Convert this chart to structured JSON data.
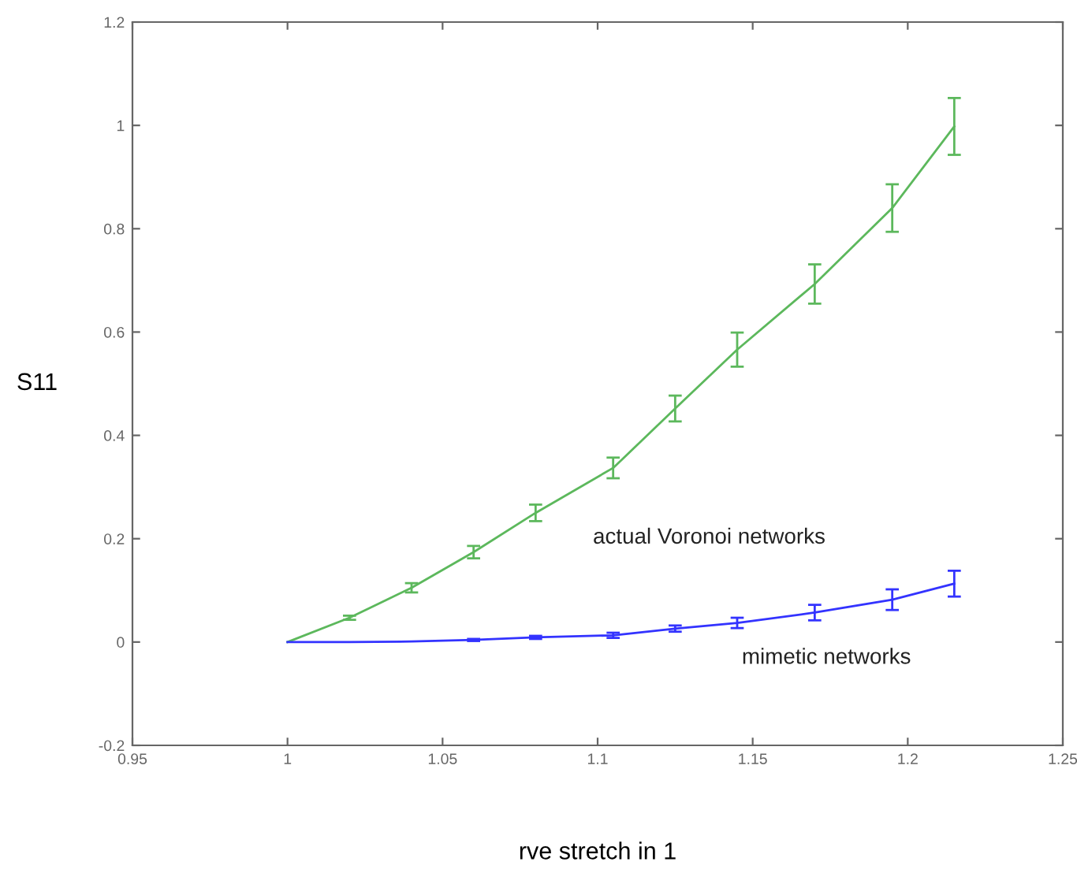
{
  "chart_data": {
    "type": "line",
    "xlabel": "rve stretch in 1",
    "ylabel": "S11",
    "x": [
      1.0,
      1.02,
      1.04,
      1.06,
      1.08,
      1.105,
      1.125,
      1.145,
      1.17,
      1.195,
      1.215
    ],
    "series": [
      {
        "name": "actual Voronoi networks",
        "color": "#5cb85c",
        "values": [
          0,
          0.047,
          0.105,
          0.174,
          0.25,
          0.337,
          0.452,
          0.566,
          0.693,
          0.84,
          0.998
        ],
        "errors": [
          null,
          0.004,
          0.009,
          0.012,
          0.016,
          0.02,
          0.025,
          0.033,
          0.038,
          0.046,
          0.055
        ]
      },
      {
        "name": "mimetic networks",
        "color": "#3333ff",
        "values": [
          0,
          0,
          0.001,
          0.004,
          0.009,
          0.013,
          0.026,
          0.037,
          0.057,
          0.082,
          0.113
        ],
        "errors": [
          null,
          null,
          null,
          0.002,
          0.003,
          0.005,
          0.006,
          0.01,
          0.015,
          0.02,
          0.025
        ]
      }
    ],
    "xlim": [
      0.95,
      1.25
    ],
    "xticks": [
      0.95,
      1,
      1.05,
      1.1,
      1.15,
      1.2,
      1.25
    ],
    "ylim": [
      -0.2,
      1.2
    ],
    "yticks": [
      -0.2,
      0,
      0.2,
      0.4,
      0.6,
      0.8,
      1,
      1.2
    ],
    "grid": false,
    "legend": false,
    "marker": "none",
    "line_style": "solid"
  }
}
